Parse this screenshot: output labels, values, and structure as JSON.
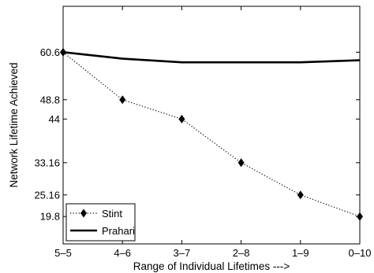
{
  "chart_data": {
    "type": "line",
    "xlabel": "Range of Individual Lifetimes --->",
    "ylabel": "Network Lifetime Achieved",
    "categories": [
      "5–5",
      "4–6",
      "3–7",
      "2–8",
      "1–9",
      "0–10"
    ],
    "yticks": [
      19.8,
      25.16,
      33.16,
      44,
      48.8,
      60.6
    ],
    "ytick_labels": [
      "19.8",
      "25.16",
      "33.16",
      "44",
      "48.8",
      "60.6"
    ],
    "ylim": [
      13,
      72
    ],
    "grid": false,
    "legend_position": "bottom-left",
    "series": [
      {
        "name": "Stint",
        "values": [
          60.6,
          48.8,
          44,
          33.16,
          25.16,
          19.8
        ],
        "style": "dotted",
        "marker": "diamond",
        "color": "#000000"
      },
      {
        "name": "Prahari",
        "values": [
          60.6,
          59.0,
          58.1,
          58.1,
          58.1,
          58.6
        ],
        "style": "solid",
        "marker": "none",
        "color": "#000000"
      }
    ]
  }
}
